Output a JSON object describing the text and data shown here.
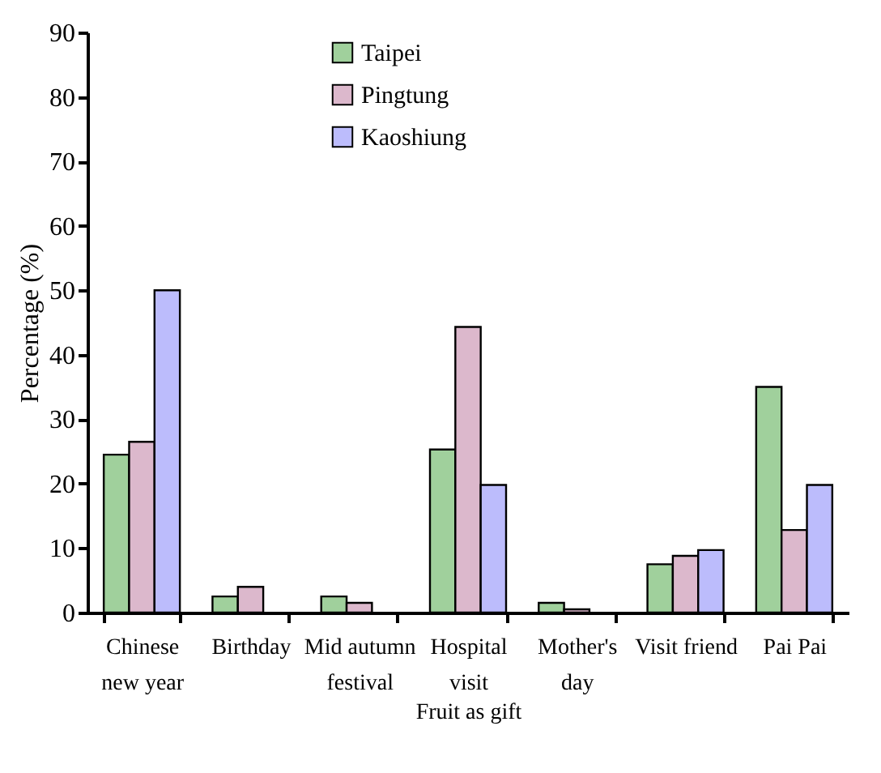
{
  "chart_data": {
    "type": "bar",
    "xlabel": "Fruit as gift",
    "ylabel": "Percentage (%)",
    "categories": [
      "Chinese\nnew year",
      "Birthday",
      "Mid autumn\nfestival",
      "Hospital\nvisit",
      "Mother's\nday",
      "Visit friend",
      "Pai Pai"
    ],
    "series": [
      {
        "name": "Taipei",
        "color": "#a0d09c",
        "values": [
          24.5,
          2.5,
          2.5,
          25.3,
          1.5,
          7.5,
          35
        ]
      },
      {
        "name": "Pingtung",
        "color": "#dcb8cc",
        "values": [
          26.5,
          4,
          1.5,
          44.3,
          0.5,
          8.8,
          12.8
        ]
      },
      {
        "name": "Kaoshiung",
        "color": "#bcbcfc",
        "values": [
          50,
          0,
          0,
          19.8,
          0,
          9.7,
          19.8
        ]
      }
    ],
    "ylim": [
      0,
      90
    ],
    "yticks": [
      0,
      10,
      20,
      30,
      40,
      50,
      60,
      70,
      80,
      90
    ],
    "grid": false,
    "legend": "top left"
  }
}
